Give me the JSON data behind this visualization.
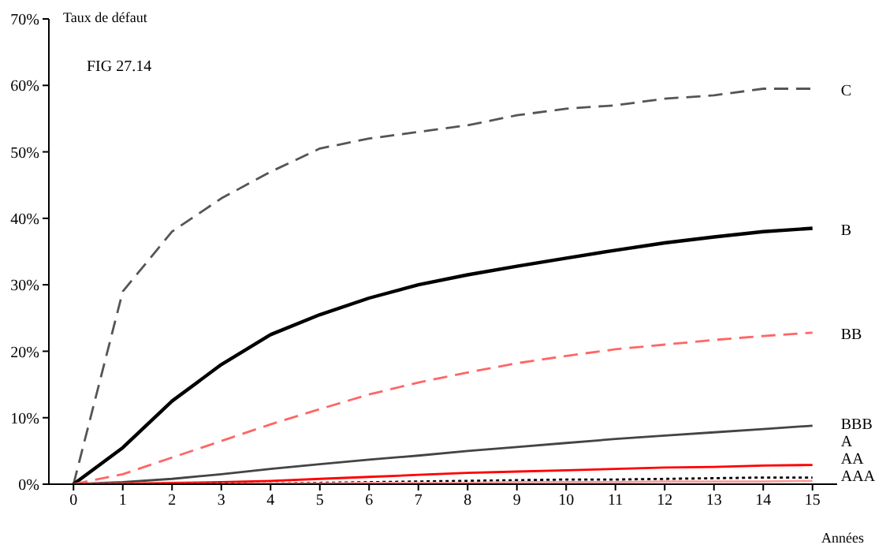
{
  "chart_data": {
    "type": "line",
    "ylabel": "Taux de défaut",
    "xlabel": "Années",
    "annotations": [
      "FIG 27.14"
    ],
    "x": [
      0,
      1,
      2,
      3,
      4,
      5,
      6,
      7,
      8,
      9,
      10,
      11,
      12,
      13,
      14,
      15
    ],
    "xlim": [
      -0.5,
      15.5
    ],
    "xticks": [
      0,
      1,
      2,
      3,
      4,
      5,
      6,
      7,
      8,
      9,
      10,
      11,
      12,
      13,
      14,
      15
    ],
    "ylim": [
      0,
      70
    ],
    "yticks": [
      {
        "value": 0,
        "label": "0%"
      },
      {
        "value": 10,
        "label": "10%"
      },
      {
        "value": 20,
        "label": "20%"
      },
      {
        "value": 30,
        "label": "30%"
      },
      {
        "value": 40,
        "label": "40%"
      },
      {
        "value": 50,
        "label": "50%"
      },
      {
        "value": 60,
        "label": "60%"
      },
      {
        "value": 70,
        "label": "70%"
      }
    ],
    "grid": false,
    "legend": false,
    "marker": "none",
    "series": [
      {
        "name": "C",
        "color": "#555555",
        "line_style": "dashed",
        "values": [
          0,
          29,
          38,
          43,
          47,
          50.5,
          52,
          53,
          54,
          55.5,
          56.5,
          57,
          58,
          58.5,
          59.5,
          59.5
        ]
      },
      {
        "name": "B",
        "color": "#000000",
        "line_style": "solid",
        "values": [
          0,
          5.5,
          12.5,
          18,
          22.5,
          25.5,
          28,
          30,
          31.5,
          32.8,
          34,
          35.2,
          36.3,
          37.2,
          38,
          38.5
        ]
      },
      {
        "name": "BB",
        "color": "#ff6666",
        "line_style": "dashed",
        "values": [
          0,
          1.5,
          4,
          6.5,
          9,
          11.3,
          13.5,
          15.3,
          16.8,
          18.2,
          19.3,
          20.3,
          21,
          21.7,
          22.3,
          22.8
        ]
      },
      {
        "name": "BBB",
        "color": "#444444",
        "line_style": "solid",
        "values": [
          0,
          0.3,
          0.8,
          1.5,
          2.3,
          3,
          3.7,
          4.3,
          5,
          5.6,
          6.2,
          6.8,
          7.3,
          7.8,
          8.3,
          8.8
        ]
      },
      {
        "name": "A",
        "color": "#ff0000",
        "line_style": "solid",
        "values": [
          0,
          0.1,
          0.2,
          0.3,
          0.5,
          0.8,
          1.1,
          1.4,
          1.7,
          1.9,
          2.1,
          2.3,
          2.5,
          2.6,
          2.8,
          2.9
        ]
      },
      {
        "name": "AA",
        "color": "#000000",
        "line_style": "dotted",
        "values": [
          0,
          0,
          0,
          0.1,
          0.1,
          0.2,
          0.3,
          0.4,
          0.5,
          0.6,
          0.7,
          0.7,
          0.8,
          0.9,
          1,
          1
        ]
      },
      {
        "name": "AAA",
        "color": "#ff9999",
        "line_style": "solid",
        "values": [
          0,
          0,
          0,
          0,
          0.1,
          0.1,
          0.2,
          0.2,
          0.2,
          0.3,
          0.3,
          0.3,
          0.4,
          0.4,
          0.4,
          0.5
        ]
      }
    ]
  }
}
